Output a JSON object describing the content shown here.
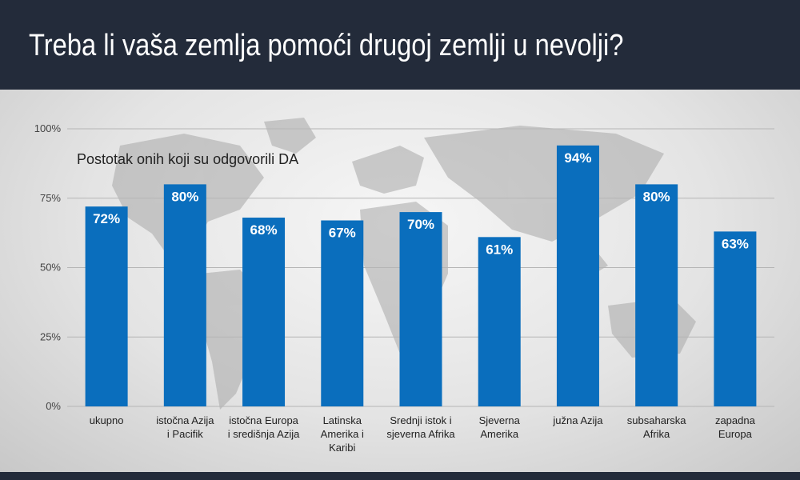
{
  "header": {
    "title": "Treba li vaša zemlja pomoći drugoj zemlji u nevolji?"
  },
  "chart_data": {
    "type": "bar",
    "subtitle": "Postotak onih koji su odgovorili DA",
    "categories": [
      [
        "ukupno"
      ],
      [
        "istočna Azija",
        "i Pacifik"
      ],
      [
        "istočna Europa",
        "i središnja Azija"
      ],
      [
        "Latinska",
        "Amerika i",
        "Karibi"
      ],
      [
        "Srednji istok i",
        "sjeverna Afrika"
      ],
      [
        "Sjeverna",
        "Amerika"
      ],
      [
        "južna Azija"
      ],
      [
        "subsaharska",
        "Afrika"
      ],
      [
        "zapadna",
        "Europa"
      ]
    ],
    "values": [
      72,
      80,
      68,
      67,
      70,
      61,
      94,
      80,
      63
    ],
    "value_labels": [
      "72%",
      "80%",
      "68%",
      "67%",
      "70%",
      "61%",
      "94%",
      "80%",
      "63%"
    ],
    "yticks": [
      0,
      25,
      50,
      75,
      100
    ],
    "ytick_labels": [
      "0%",
      "25%",
      "50%",
      "75%",
      "100%"
    ],
    "ylim": [
      0,
      100
    ],
    "grid": true,
    "bar_color": "#0a6ebd",
    "grid_color": "#b5b5b5"
  }
}
